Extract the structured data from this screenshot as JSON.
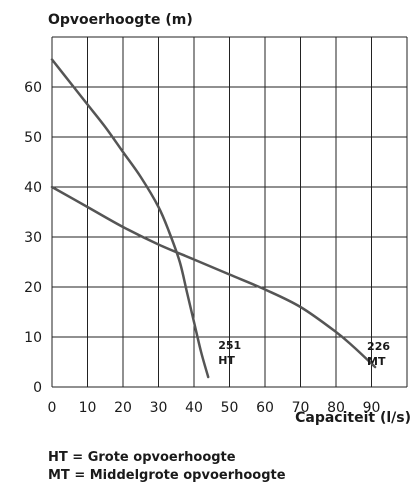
{
  "chart_data": {
    "type": "line",
    "title": "",
    "ylabel": "Opvoerhoogte (m)",
    "xlabel": "Capaciteit (l/s)",
    "xlim": [
      0,
      100
    ],
    "ylim": [
      0,
      70
    ],
    "xticks": [
      0,
      10,
      20,
      30,
      40,
      50,
      60,
      70,
      80,
      90
    ],
    "yticks": [
      0,
      10,
      20,
      30,
      40,
      50,
      60
    ],
    "grid": true,
    "series": [
      {
        "name": "251 HT",
        "label_lines": [
          "251",
          "HT"
        ],
        "color": "#555555",
        "points": [
          [
            0,
            65.5
          ],
          [
            5,
            61
          ],
          [
            10,
            56.5
          ],
          [
            15,
            52
          ],
          [
            20,
            47
          ],
          [
            25,
            42
          ],
          [
            30,
            36
          ],
          [
            33,
            31
          ],
          [
            36,
            25
          ],
          [
            38,
            19
          ],
          [
            40,
            13
          ],
          [
            42,
            7
          ],
          [
            44,
            2
          ]
        ]
      },
      {
        "name": "226 MT",
        "label_lines": [
          "226",
          "MT"
        ],
        "color": "#555555",
        "points": [
          [
            0,
            40
          ],
          [
            10,
            36
          ],
          [
            20,
            32
          ],
          [
            30,
            28.5
          ],
          [
            40,
            25.5
          ],
          [
            50,
            22.5
          ],
          [
            60,
            19.5
          ],
          [
            70,
            16
          ],
          [
            80,
            11
          ],
          [
            85,
            8
          ],
          [
            91,
            4
          ]
        ]
      }
    ]
  },
  "notes": {
    "ht": "HT = Grote opvoerhoogte",
    "mt": "MT = Middelgrote opvoerhoogte"
  }
}
